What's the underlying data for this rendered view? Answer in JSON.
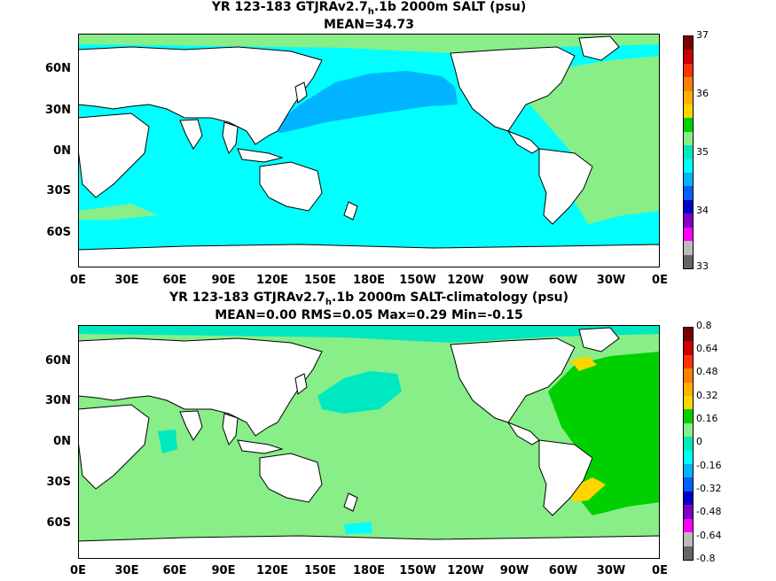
{
  "panels": [
    {
      "title_pre": "YR 123-183 GTJRAv2.7",
      "title_sub": "h",
      "title_post": ".1b 2000m SALT (psu)",
      "stats": "MEAN=34.73",
      "colorbar_ticks": [
        "37",
        "36",
        "35",
        "34",
        "33"
      ],
      "colorbar_colors": [
        "#7a0000",
        "#cc0000",
        "#ff3300",
        "#ff7f00",
        "#ffb000",
        "#ffd500",
        "#00d000",
        "#88ee88",
        "#00e8c0",
        "#00ffff",
        "#00b4ff",
        "#0060ff",
        "#0000d0",
        "#8000c0",
        "#ff00ff",
        "#bbbbbb",
        "#666666"
      ],
      "ocean_color": "#00ffff",
      "pacific_color": "#00b4ff",
      "atlantic_color": "#88ee88"
    },
    {
      "title_pre": "YR 123-183 GTJRAv2.7",
      "title_sub": "h",
      "title_post": ".1b 2000m SALT-climatology (psu)",
      "stats": "MEAN=0.00   RMS=0.05   Max=0.29   Min=-0.15",
      "colorbar_ticks": [
        "0.8",
        "0.64",
        "0.48",
        "0.32",
        "0.16",
        "0",
        "-0.16",
        "-0.32",
        "-0.48",
        "-0.64",
        "-0.8"
      ],
      "colorbar_colors": [
        "#7a0000",
        "#cc0000",
        "#ff3300",
        "#ff7f00",
        "#ffb000",
        "#ffd500",
        "#00d000",
        "#88ee88",
        "#00e8c0",
        "#00ffff",
        "#00b4ff",
        "#0060ff",
        "#0000d0",
        "#8000c0",
        "#ff00ff",
        "#bbbbbb",
        "#666666"
      ],
      "ocean_color": "#88ee88",
      "pacific_color": "#88ee88",
      "atlantic_color": "#00d000"
    }
  ],
  "lat_labels": [
    "60N",
    "30N",
    "0N",
    "30S",
    "60S"
  ],
  "lon_labels": [
    "0E",
    "30E",
    "60E",
    "90E",
    "120E",
    "150E",
    "180E",
    "150W",
    "120W",
    "90W",
    "60W",
    "30W",
    "0E"
  ]
}
